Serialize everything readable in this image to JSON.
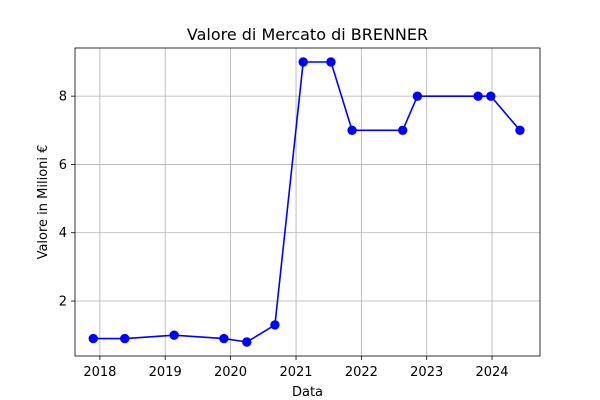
{
  "chart_data": {
    "type": "line",
    "title": "Valore di Mercato di BRENNER",
    "xlabel": "Data",
    "ylabel": "Valore in Milioni €",
    "x_ticks": [
      "2018",
      "2019",
      "2020",
      "2021",
      "2022",
      "2023",
      "2024"
    ],
    "y_ticks": [
      "2",
      "4",
      "6",
      "8"
    ],
    "xlim": [
      "2017-08-15",
      "2024-09-25"
    ],
    "ylim": [
      0.39,
      9.41
    ],
    "grid": true,
    "series": [
      {
        "color": "#0000ff",
        "marker": "circle",
        "points": [
          {
            "x": "2017-11-25",
            "y": 0.9
          },
          {
            "x": "2018-05-20",
            "y": 0.9
          },
          {
            "x": "2019-02-20",
            "y": 1.0
          },
          {
            "x": "2019-11-25",
            "y": 0.9
          },
          {
            "x": "2020-04-01",
            "y": 0.8
          },
          {
            "x": "2020-09-05",
            "y": 1.3
          },
          {
            "x": "2021-02-10",
            "y": 9.0
          },
          {
            "x": "2021-07-15",
            "y": 9.0
          },
          {
            "x": "2021-11-10",
            "y": 7.0
          },
          {
            "x": "2022-08-20",
            "y": 7.0
          },
          {
            "x": "2022-11-10",
            "y": 8.0
          },
          {
            "x": "2023-10-15",
            "y": 8.0
          },
          {
            "x": "2023-12-25",
            "y": 8.0
          },
          {
            "x": "2024-06-05",
            "y": 7.0
          }
        ]
      }
    ]
  }
}
